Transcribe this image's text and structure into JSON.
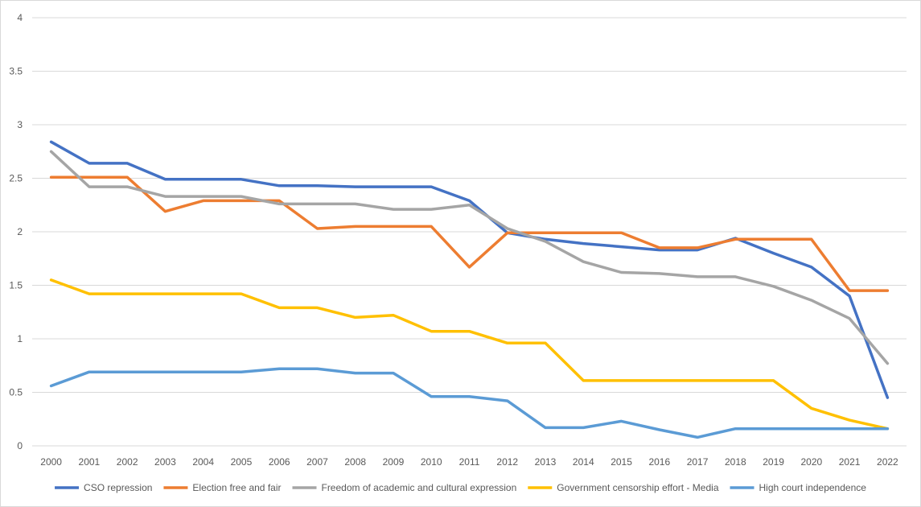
{
  "chart_data": {
    "type": "line",
    "title": "",
    "xlabel": "",
    "ylabel": "",
    "ylim": [
      0,
      4
    ],
    "yticks": [
      "0",
      "0.5",
      "1",
      "1.5",
      "2",
      "2.5",
      "3",
      "3.5",
      "4"
    ],
    "grid": true,
    "legend_position": "bottom",
    "categories": [
      "2000",
      "2001",
      "2002",
      "2003",
      "2004",
      "2005",
      "2006",
      "2007",
      "2008",
      "2009",
      "2010",
      "2011",
      "2012",
      "2013",
      "2014",
      "2015",
      "2016",
      "2017",
      "2018",
      "2019",
      "2020",
      "2021",
      "2022"
    ],
    "series": [
      {
        "name": "CSO repression",
        "color": "#4472C4",
        "values": [
          2.84,
          2.64,
          2.64,
          2.49,
          2.49,
          2.49,
          2.43,
          2.43,
          2.42,
          2.42,
          2.42,
          2.29,
          1.99,
          1.93,
          1.89,
          1.86,
          1.83,
          1.83,
          1.94,
          1.8,
          1.67,
          1.4,
          0.45
        ]
      },
      {
        "name": "Election free and fair",
        "color": "#ED7D31",
        "values": [
          2.51,
          2.51,
          2.51,
          2.19,
          2.29,
          2.29,
          2.29,
          2.03,
          2.05,
          2.05,
          2.05,
          1.67,
          1.99,
          1.99,
          1.99,
          1.99,
          1.85,
          1.85,
          1.93,
          1.93,
          1.93,
          1.45,
          1.45
        ]
      },
      {
        "name": "Freedom of academic and cultural expression",
        "color": "#A5A5A5",
        "values": [
          2.75,
          2.42,
          2.42,
          2.33,
          2.33,
          2.33,
          2.26,
          2.26,
          2.26,
          2.21,
          2.21,
          2.25,
          2.03,
          1.91,
          1.72,
          1.62,
          1.61,
          1.58,
          1.58,
          1.49,
          1.36,
          1.19,
          0.77
        ]
      },
      {
        "name": "Government censorship effort - Media",
        "color": "#FFC000",
        "values": [
          1.55,
          1.42,
          1.42,
          1.42,
          1.42,
          1.42,
          1.29,
          1.29,
          1.2,
          1.22,
          1.07,
          1.07,
          0.96,
          0.96,
          0.61,
          0.61,
          0.61,
          0.61,
          0.61,
          0.61,
          0.35,
          0.24,
          0.16
        ]
      },
      {
        "name": "High court independence",
        "color": "#5B9BD5",
        "values": [
          0.56,
          0.69,
          0.69,
          0.69,
          0.69,
          0.69,
          0.72,
          0.72,
          0.68,
          0.68,
          0.46,
          0.46,
          0.42,
          0.17,
          0.17,
          0.23,
          0.15,
          0.08,
          0.16,
          0.16,
          0.16,
          0.16,
          0.16
        ]
      }
    ]
  }
}
